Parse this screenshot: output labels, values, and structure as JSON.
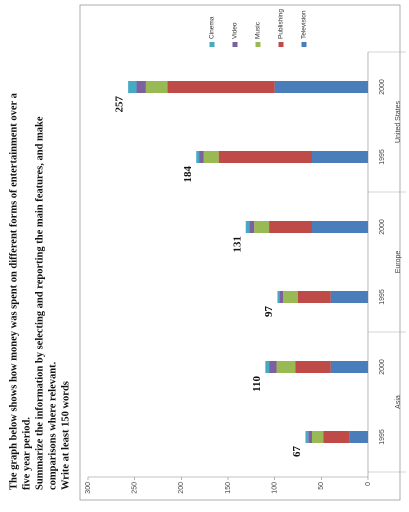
{
  "prompt": [
    "The graph below shows how money was spent on different forms of entertainment over a",
    "five year period.",
    "Summarize the information by selecting and reporting the main features, and make",
    "comparisons where relevant.",
    "Write at least 150 words"
  ],
  "chart_data": {
    "type": "stacked_bar",
    "categories": [
      "1995",
      "2000",
      "1995",
      "2000",
      "1995",
      "2000"
    ],
    "groups": [
      "Asia",
      "Europe",
      "United States"
    ],
    "series": [
      {
        "name": "Television",
        "color": "#4a7ebb",
        "values": [
          20,
          40,
          40,
          60,
          60,
          100
        ]
      },
      {
        "name": "Publishing",
        "color": "#be4b48",
        "values": [
          28,
          38,
          35,
          46,
          100,
          115
        ]
      },
      {
        "name": "Music",
        "color": "#98b954",
        "values": [
          12,
          20,
          16,
          16,
          16,
          23
        ]
      },
      {
        "name": "Video",
        "color": "#7d60a0",
        "values": [
          4,
          8,
          4,
          5,
          5,
          10
        ]
      },
      {
        "name": "Cinema",
        "color": "#46aac4",
        "values": [
          3,
          4,
          2,
          4,
          3,
          9
        ]
      }
    ],
    "totals": [
      67,
      110,
      97,
      131,
      184,
      257
    ],
    "ylim": [
      0,
      300
    ],
    "yticks": [
      0,
      50,
      100,
      150,
      200,
      250,
      300
    ]
  }
}
